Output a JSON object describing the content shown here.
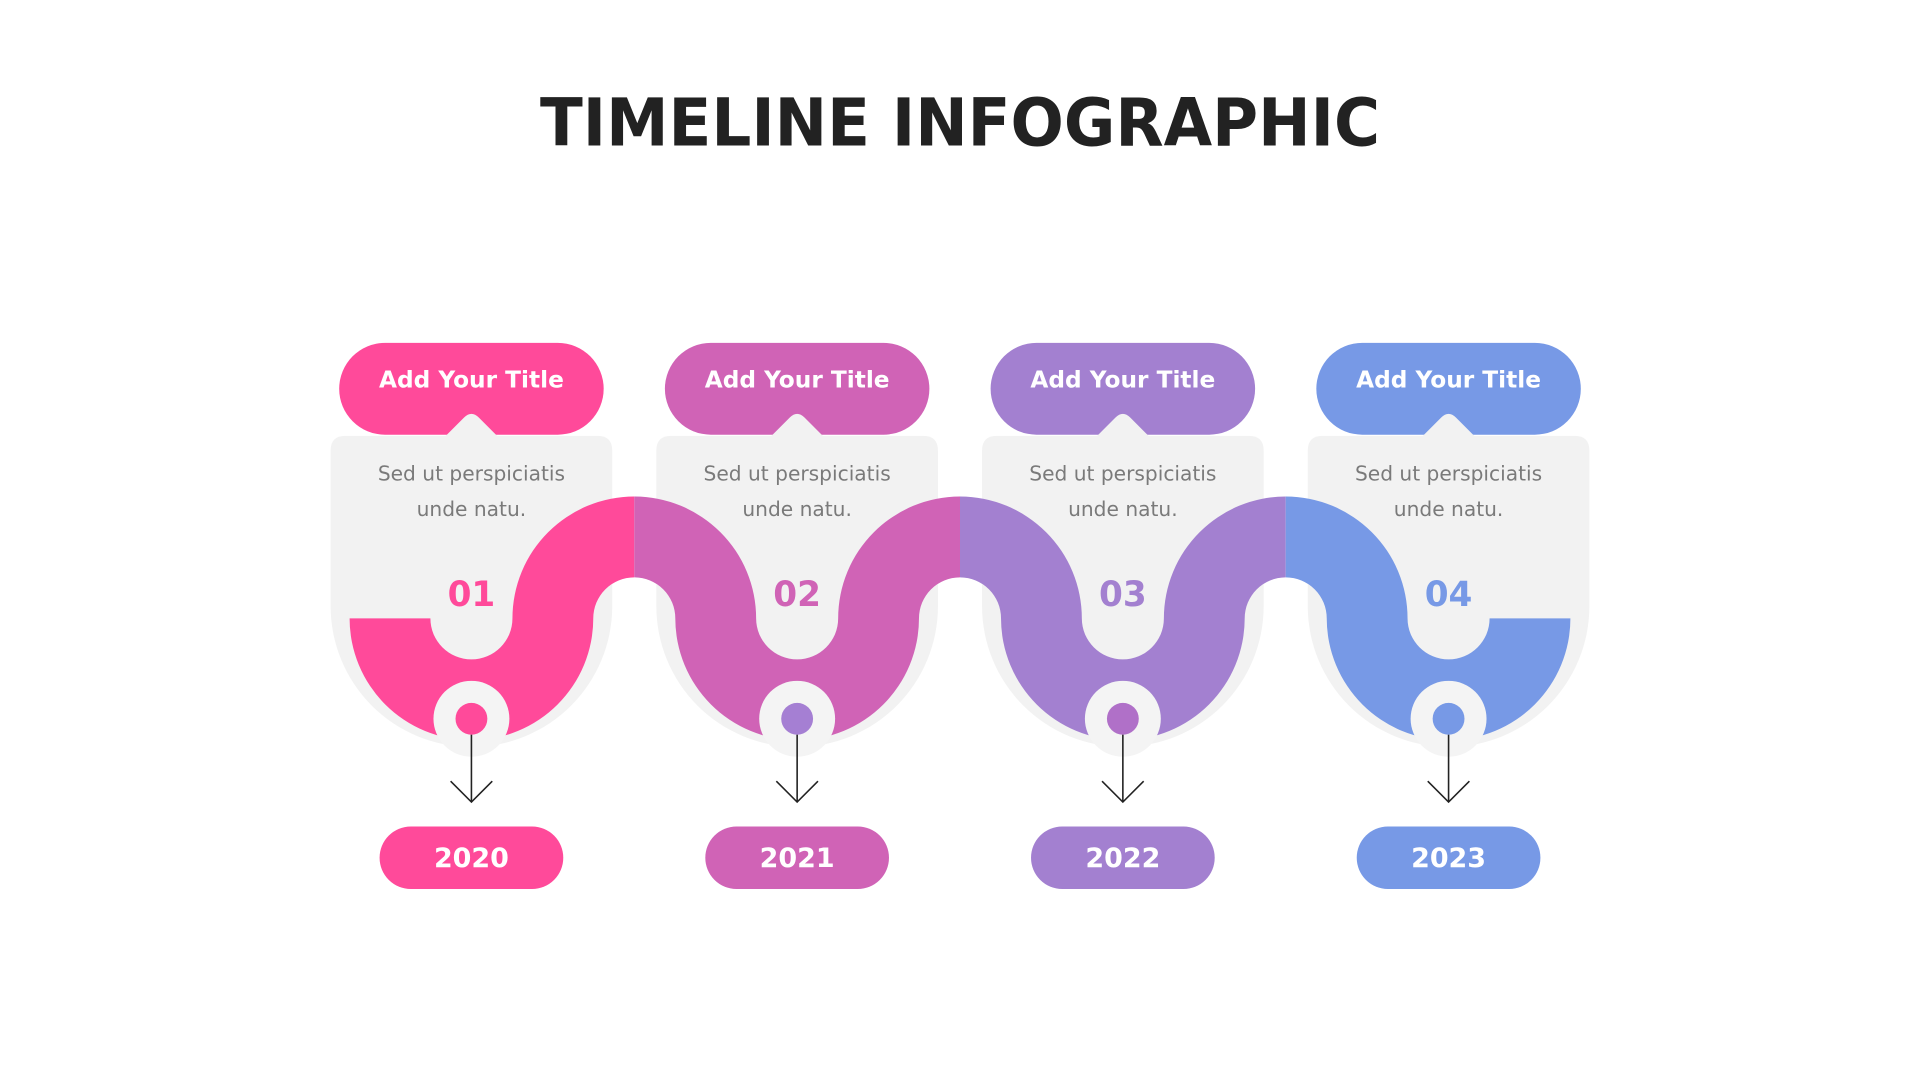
{
  "header": {
    "title": "TIMELINE INFOGRAPHIC"
  },
  "steps": [
    {
      "title": "Add Your Title",
      "description": [
        "Sed ut perspiciatis",
        "unde natu."
      ],
      "number": "01",
      "year": "2020"
    },
    {
      "title": "Add Your Title",
      "description": [
        "Sed ut perspiciatis",
        "unde natu."
      ],
      "number": "02",
      "year": "2021"
    },
    {
      "title": "Add Your Title",
      "description": [
        "Sed ut perspiciatis",
        "unde natu."
      ],
      "number": "03",
      "year": "2022"
    },
    {
      "title": "Add Your Title",
      "description": [
        "Sed ut perspiciatis",
        "unde natu."
      ],
      "number": "04",
      "year": "2023"
    }
  ]
}
